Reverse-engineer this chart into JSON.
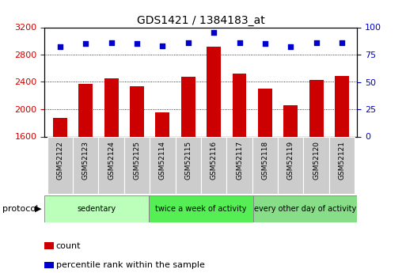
{
  "title": "GDS1421 / 1384183_at",
  "samples": [
    "GSM52122",
    "GSM52123",
    "GSM52124",
    "GSM52125",
    "GSM52114",
    "GSM52115",
    "GSM52116",
    "GSM52117",
    "GSM52118",
    "GSM52119",
    "GSM52120",
    "GSM52121"
  ],
  "counts": [
    1870,
    2370,
    2450,
    2340,
    1950,
    2480,
    2920,
    2520,
    2300,
    2060,
    2430,
    2490
  ],
  "percentile_ranks": [
    82,
    85,
    86,
    85,
    83,
    86,
    95,
    86,
    85,
    82,
    86,
    86
  ],
  "bar_color": "#cc0000",
  "dot_color": "#0000cc",
  "ylim_left": [
    1600,
    3200
  ],
  "ylim_right": [
    0,
    100
  ],
  "yticks_left": [
    1600,
    2000,
    2400,
    2800,
    3200
  ],
  "yticks_right": [
    0,
    25,
    50,
    75,
    100
  ],
  "groups": [
    {
      "label": "sedentary",
      "start": 0,
      "end": 4,
      "color": "#bbffbb"
    },
    {
      "label": "twice a week of activity",
      "start": 4,
      "end": 8,
      "color": "#55ee55"
    },
    {
      "label": "every other day of activity",
      "start": 8,
      "end": 12,
      "color": "#88dd88"
    }
  ],
  "group_row_label": "protocol",
  "legend_count_label": "count",
  "legend_pct_label": "percentile rank within the sample",
  "bg_color": "#ffffff",
  "plot_bg": "#ffffff",
  "tick_label_color_left": "#cc0000",
  "tick_label_color_right": "#0000cc",
  "grid_color": "#000000",
  "sample_box_color": "#cccccc"
}
